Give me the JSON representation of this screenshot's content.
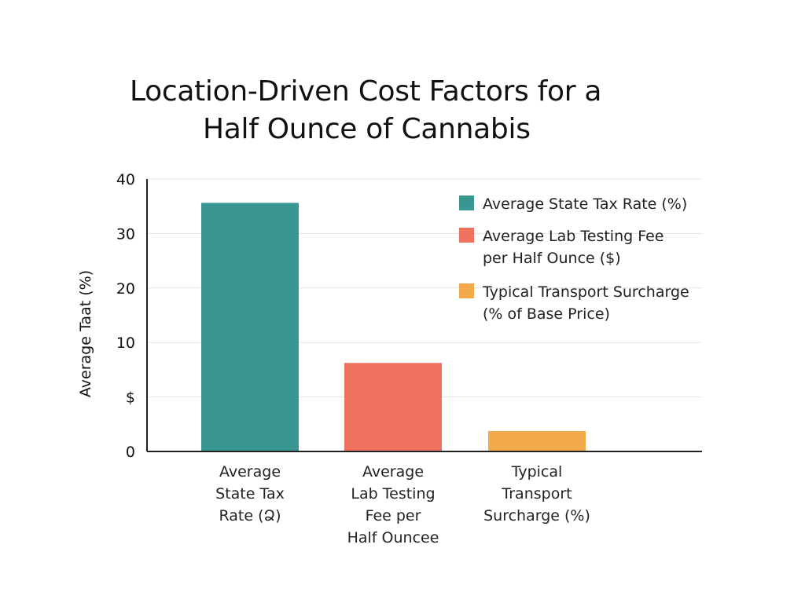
{
  "chart_data": {
    "type": "bar",
    "title_lines": [
      "Location-Driven Cost Factors for a",
      "Half Ounce of Cannabis"
    ],
    "ylabel": "Average Taat (%)",
    "ylim": [
      0,
      40
    ],
    "y_ticks": [
      "0",
      "$",
      "10",
      "20",
      "30",
      "40"
    ],
    "grid": true,
    "legend_position": "top-right",
    "categories": [
      {
        "lines": [
          "Average",
          "State Tax",
          "Rate (Ձ)"
        ]
      },
      {
        "lines": [
          "Average",
          "Lab Testing",
          "Fee per",
          "Half Ouncee"
        ]
      },
      {
        "lines": [
          "Typical",
          "Transport",
          "Surcharge (%)"
        ]
      }
    ],
    "values": [
      36.5,
      13,
      3
    ],
    "colors": [
      "#3a9690",
      "#ef7260",
      "#f2aa4c"
    ],
    "legend": [
      {
        "lines": [
          "Average State Tax Rate (%)"
        ],
        "color": "#3a9690"
      },
      {
        "lines": [
          "Average Lab Testing Fee",
          "per Half Ounce ($)"
        ],
        "color": "#ef7260"
      },
      {
        "lines": [
          "Typical Transport Surcharge",
          "(% of Base Price)"
        ],
        "color": "#f2aa4c"
      }
    ],
    "axis_color": "#222222",
    "grid_color": "#e3e3e3"
  }
}
